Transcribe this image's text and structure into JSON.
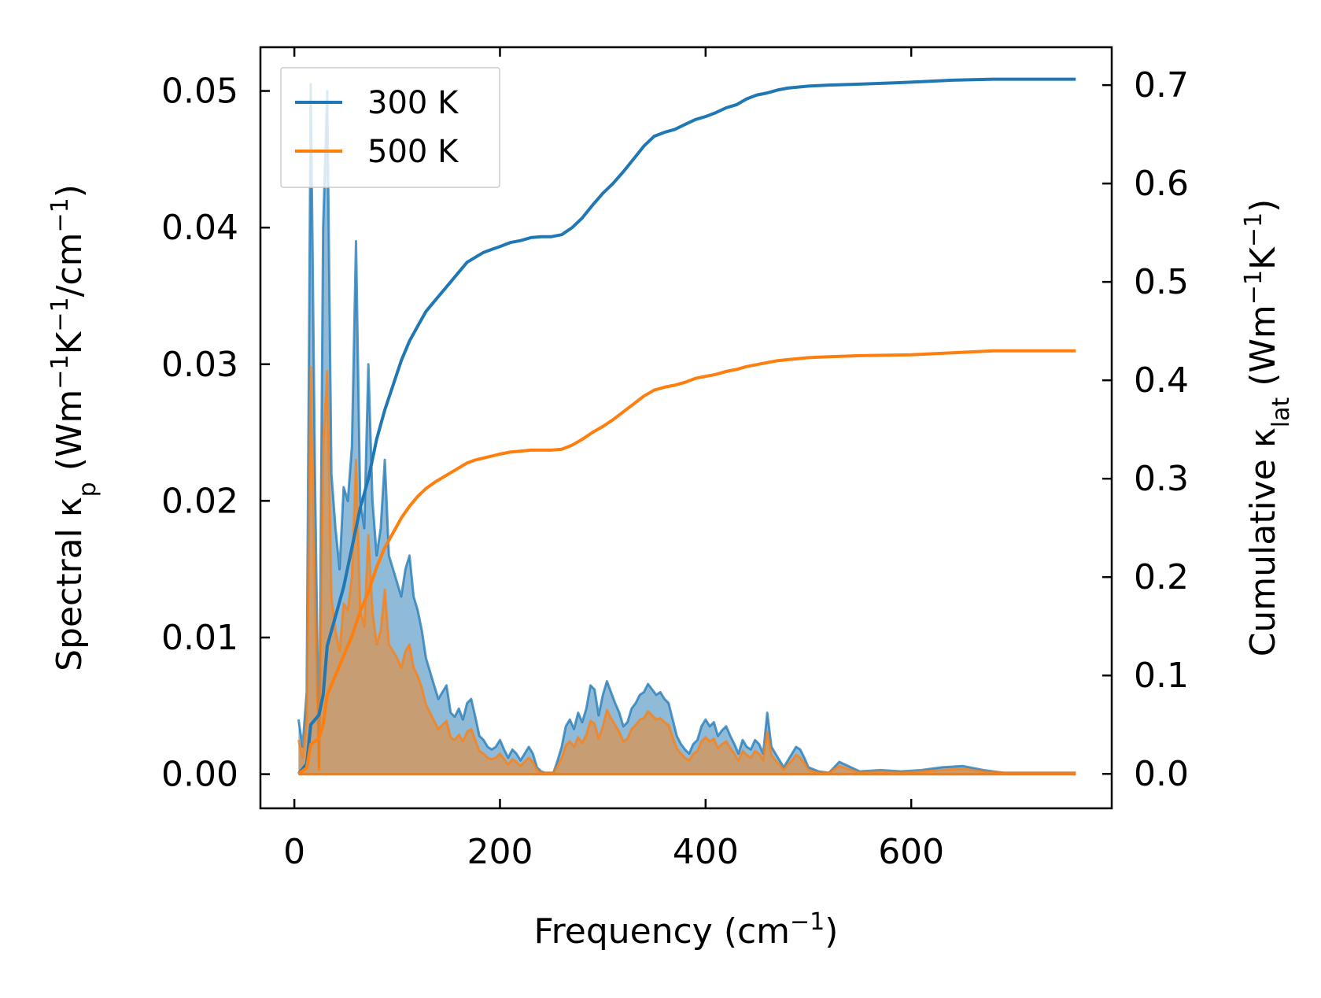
{
  "chart_data": {
    "type": "line",
    "title": "",
    "xlabel": {
      "main": "Frequency (cm",
      "sup": "−1",
      "tail": ")"
    },
    "ylabel_left": {
      "parts": [
        [
          "Spectral κ",
          ""
        ],
        [
          "p",
          "sub"
        ],
        [
          " (Wm",
          ""
        ],
        [
          "−1",
          "sup"
        ],
        [
          "K",
          ""
        ],
        [
          "−1",
          "sup"
        ],
        [
          "/cm",
          ""
        ],
        [
          "−1",
          "sup"
        ],
        [
          ")",
          ""
        ]
      ]
    },
    "ylabel_right": {
      "parts": [
        [
          "Cumulative κ",
          ""
        ],
        [
          "lat",
          "sub"
        ],
        [
          " (Wm",
          ""
        ],
        [
          "−1",
          "sup"
        ],
        [
          "K",
          ""
        ],
        [
          "−1",
          "sup"
        ],
        [
          ")",
          ""
        ]
      ]
    },
    "xlim": [
      -33,
      795
    ],
    "ylim_left": [
      -0.0025,
      0.0532
    ],
    "ylim_right": [
      -0.035,
      0.7385
    ],
    "x_ticks": [
      0,
      200,
      400,
      600
    ],
    "x_tick_labels": [
      "0",
      "200",
      "400",
      "600"
    ],
    "y_left_ticks": [
      0,
      0.01,
      0.02,
      0.03,
      0.04,
      0.05
    ],
    "y_left_tick_labels": [
      "0.00",
      "0.01",
      "0.02",
      "0.03",
      "0.04",
      "0.05"
    ],
    "y_right_ticks": [
      0,
      0.1,
      0.2,
      0.3,
      0.4,
      0.5,
      0.6,
      0.7
    ],
    "y_right_tick_labels": [
      "0.0",
      "0.1",
      "0.2",
      "0.3",
      "0.4",
      "0.5",
      "0.6",
      "0.7"
    ],
    "legend": {
      "placement": "top-left",
      "entries": [
        "300 K",
        "500 K"
      ]
    },
    "colors": {
      "300 K": "#1f77b4",
      "500 K": "#ff7f0e",
      "frame": "#000000"
    },
    "series": [
      {
        "name": "300 K",
        "axis": "left",
        "kind": "spectral-filled",
        "x": [
          4,
          8,
          12,
          16,
          20,
          24,
          28,
          32,
          36,
          40,
          44,
          48,
          52,
          56,
          60,
          64,
          68,
          72,
          76,
          80,
          84,
          88,
          92,
          96,
          100,
          104,
          108,
          112,
          116,
          120,
          124,
          128,
          132,
          136,
          140,
          144,
          148,
          152,
          156,
          160,
          164,
          168,
          172,
          176,
          180,
          184,
          188,
          192,
          196,
          200,
          204,
          208,
          212,
          216,
          220,
          224,
          228,
          232,
          236,
          240,
          244,
          248,
          252,
          256,
          260,
          264,
          268,
          272,
          276,
          280,
          284,
          288,
          292,
          296,
          300,
          304,
          308,
          312,
          316,
          320,
          324,
          328,
          332,
          336,
          340,
          344,
          348,
          352,
          356,
          360,
          364,
          368,
          372,
          376,
          380,
          384,
          388,
          392,
          396,
          400,
          404,
          408,
          412,
          416,
          420,
          424,
          428,
          432,
          436,
          440,
          444,
          448,
          452,
          456,
          460,
          464,
          468,
          472,
          476,
          480,
          484,
          488,
          492,
          496,
          500,
          510,
          520,
          530,
          550,
          570,
          590,
          610,
          630,
          650,
          670,
          690,
          710,
          730,
          760
        ],
        "values": [
          0.004,
          0.002,
          0.006,
          0.0505,
          0.022,
          0.0005,
          0.04,
          0.05,
          0.022,
          0.018,
          0.015,
          0.021,
          0.02,
          0.024,
          0.039,
          0.02,
          0.018,
          0.03,
          0.02,
          0.016,
          0.018,
          0.023,
          0.016,
          0.015,
          0.014,
          0.013,
          0.015,
          0.016,
          0.013,
          0.012,
          0.0105,
          0.0085,
          0.0075,
          0.0065,
          0.0055,
          0.006,
          0.0065,
          0.0045,
          0.0042,
          0.0048,
          0.004,
          0.0052,
          0.0055,
          0.0042,
          0.0028,
          0.0025,
          0.002,
          0.0018,
          0.002,
          0.0025,
          0.0018,
          0.0012,
          0.0018,
          0.0015,
          0.001,
          0.0015,
          0.002,
          0.0015,
          0.0005,
          0.0002,
          0.0001,
          0.0001,
          0.0001,
          0.001,
          0.002,
          0.0035,
          0.004,
          0.0033,
          0.0045,
          0.0038,
          0.0048,
          0.0065,
          0.0062,
          0.0043,
          0.0058,
          0.0068,
          0.006,
          0.0052,
          0.0045,
          0.0035,
          0.0038,
          0.0048,
          0.0052,
          0.0058,
          0.006,
          0.0066,
          0.0062,
          0.0058,
          0.006,
          0.0055,
          0.0052,
          0.004,
          0.0028,
          0.0022,
          0.0018,
          0.0015,
          0.0022,
          0.0025,
          0.0035,
          0.004,
          0.0035,
          0.0038,
          0.0028,
          0.0032,
          0.0035,
          0.0028,
          0.0022,
          0.0015,
          0.0025,
          0.002,
          0.0018,
          0.0025,
          0.0022,
          0.0015,
          0.0045,
          0.002,
          0.0015,
          0.001,
          0.0005,
          0.001,
          0.0015,
          0.002,
          0.0018,
          0.0012,
          0.0005,
          0.0002,
          0.0001,
          0.0009,
          0.0002,
          0.0003,
          0.0002,
          0.0003,
          0.0005,
          0.0006,
          0.0003,
          0.0001,
          0.0001,
          0.0001,
          0.0001
        ]
      },
      {
        "name": "500 K",
        "axis": "left",
        "kind": "spectral-filled",
        "x": [
          4,
          8,
          12,
          16,
          20,
          24,
          28,
          32,
          36,
          40,
          44,
          48,
          52,
          56,
          60,
          64,
          68,
          72,
          76,
          80,
          84,
          88,
          92,
          96,
          100,
          104,
          108,
          112,
          116,
          120,
          124,
          128,
          132,
          136,
          140,
          144,
          148,
          152,
          156,
          160,
          164,
          168,
          172,
          176,
          180,
          184,
          188,
          192,
          196,
          200,
          204,
          208,
          212,
          216,
          220,
          224,
          228,
          232,
          236,
          240,
          244,
          248,
          252,
          256,
          260,
          264,
          268,
          272,
          276,
          280,
          284,
          288,
          292,
          296,
          300,
          304,
          308,
          312,
          316,
          320,
          324,
          328,
          332,
          336,
          340,
          344,
          348,
          352,
          356,
          360,
          364,
          368,
          372,
          376,
          380,
          384,
          388,
          392,
          396,
          400,
          404,
          408,
          412,
          416,
          420,
          424,
          428,
          432,
          436,
          440,
          444,
          448,
          452,
          456,
          460,
          464,
          468,
          472,
          476,
          480,
          484,
          488,
          492,
          496,
          500,
          510,
          520,
          530,
          550,
          570,
          590,
          610,
          630,
          650,
          670,
          690,
          710,
          730,
          760
        ],
        "values": [
          0.0025,
          0.0012,
          0.004,
          0.0298,
          0.013,
          0.0003,
          0.024,
          0.0295,
          0.013,
          0.0105,
          0.009,
          0.0125,
          0.012,
          0.0145,
          0.023,
          0.012,
          0.0108,
          0.0175,
          0.012,
          0.0095,
          0.0105,
          0.0135,
          0.0095,
          0.009,
          0.0085,
          0.0078,
          0.009,
          0.0095,
          0.0078,
          0.0072,
          0.0063,
          0.0051,
          0.0045,
          0.0039,
          0.0033,
          0.0036,
          0.0039,
          0.0027,
          0.0025,
          0.0029,
          0.0024,
          0.0031,
          0.0033,
          0.0025,
          0.0017,
          0.0015,
          0.0012,
          0.0011,
          0.0012,
          0.0015,
          0.0011,
          0.0007,
          0.0011,
          0.0009,
          0.0006,
          0.0009,
          0.0012,
          0.0009,
          0.0003,
          0.0001,
          0.0001,
          0.0001,
          0.0001,
          0.0006,
          0.0012,
          0.0021,
          0.0024,
          0.002,
          0.0027,
          0.0023,
          0.0029,
          0.0039,
          0.0037,
          0.0026,
          0.0035,
          0.0047,
          0.0041,
          0.0036,
          0.0031,
          0.0024,
          0.0026,
          0.0033,
          0.0036,
          0.004,
          0.0041,
          0.0046,
          0.0043,
          0.004,
          0.0041,
          0.0038,
          0.0036,
          0.0027,
          0.0019,
          0.0015,
          0.0012,
          0.001,
          0.0015,
          0.0017,
          0.0024,
          0.0027,
          0.0024,
          0.0026,
          0.0019,
          0.0022,
          0.0024,
          0.0019,
          0.0015,
          0.001,
          0.0017,
          0.0014,
          0.0012,
          0.0017,
          0.0015,
          0.001,
          0.0031,
          0.0014,
          0.001,
          0.0007,
          0.0003,
          0.0007,
          0.001,
          0.0014,
          0.0012,
          0.0008,
          0.0003,
          0.0001,
          0.0001,
          0.0006,
          0.0001,
          0.0002,
          0.0001,
          0.0002,
          0.0003,
          0.0004,
          0.0002,
          0.0001,
          0.0001,
          0.0001,
          0.0001
        ]
      },
      {
        "name": "300 K",
        "axis": "right",
        "kind": "cumulative",
        "x": [
          4,
          12,
          16,
          24,
          28,
          32,
          40,
          48,
          56,
          64,
          72,
          80,
          88,
          96,
          104,
          112,
          120,
          128,
          136,
          144,
          152,
          160,
          168,
          176,
          184,
          192,
          200,
          210,
          220,
          230,
          240,
          250,
          260,
          270,
          280,
          290,
          300,
          310,
          320,
          330,
          340,
          350,
          360,
          370,
          380,
          390,
          400,
          410,
          420,
          430,
          440,
          450,
          460,
          470,
          480,
          490,
          500,
          520,
          550,
          600,
          640,
          680,
          720,
          760
        ],
        "values": [
          0.0,
          0.01,
          0.05,
          0.06,
          0.08,
          0.13,
          0.16,
          0.19,
          0.23,
          0.27,
          0.3,
          0.34,
          0.37,
          0.395,
          0.42,
          0.44,
          0.455,
          0.47,
          0.48,
          0.49,
          0.5,
          0.51,
          0.52,
          0.525,
          0.53,
          0.533,
          0.536,
          0.54,
          0.542,
          0.545,
          0.546,
          0.546,
          0.548,
          0.555,
          0.565,
          0.578,
          0.59,
          0.6,
          0.612,
          0.625,
          0.638,
          0.648,
          0.652,
          0.655,
          0.66,
          0.665,
          0.668,
          0.672,
          0.677,
          0.68,
          0.686,
          0.69,
          0.692,
          0.695,
          0.697,
          0.698,
          0.699,
          0.7,
          0.701,
          0.703,
          0.705,
          0.706,
          0.706,
          0.706
        ]
      },
      {
        "name": "500 K",
        "axis": "right",
        "kind": "cumulative",
        "x": [
          4,
          12,
          16,
          24,
          28,
          32,
          40,
          48,
          56,
          64,
          72,
          80,
          88,
          96,
          104,
          112,
          120,
          128,
          136,
          144,
          152,
          160,
          168,
          176,
          184,
          192,
          200,
          210,
          220,
          230,
          240,
          250,
          260,
          270,
          280,
          290,
          300,
          310,
          320,
          330,
          340,
          350,
          360,
          370,
          380,
          390,
          400,
          410,
          420,
          430,
          440,
          450,
          460,
          470,
          480,
          490,
          500,
          520,
          550,
          600,
          640,
          680,
          720,
          760
        ],
        "values": [
          0.0,
          0.006,
          0.03,
          0.036,
          0.05,
          0.08,
          0.1,
          0.12,
          0.14,
          0.165,
          0.185,
          0.21,
          0.23,
          0.245,
          0.26,
          0.272,
          0.282,
          0.29,
          0.296,
          0.301,
          0.306,
          0.311,
          0.316,
          0.319,
          0.321,
          0.323,
          0.325,
          0.327,
          0.328,
          0.329,
          0.329,
          0.329,
          0.33,
          0.334,
          0.34,
          0.347,
          0.353,
          0.36,
          0.368,
          0.376,
          0.384,
          0.39,
          0.393,
          0.395,
          0.398,
          0.402,
          0.404,
          0.406,
          0.409,
          0.411,
          0.414,
          0.416,
          0.418,
          0.42,
          0.421,
          0.422,
          0.423,
          0.424,
          0.425,
          0.426,
          0.428,
          0.43,
          0.43,
          0.43
        ]
      }
    ]
  }
}
